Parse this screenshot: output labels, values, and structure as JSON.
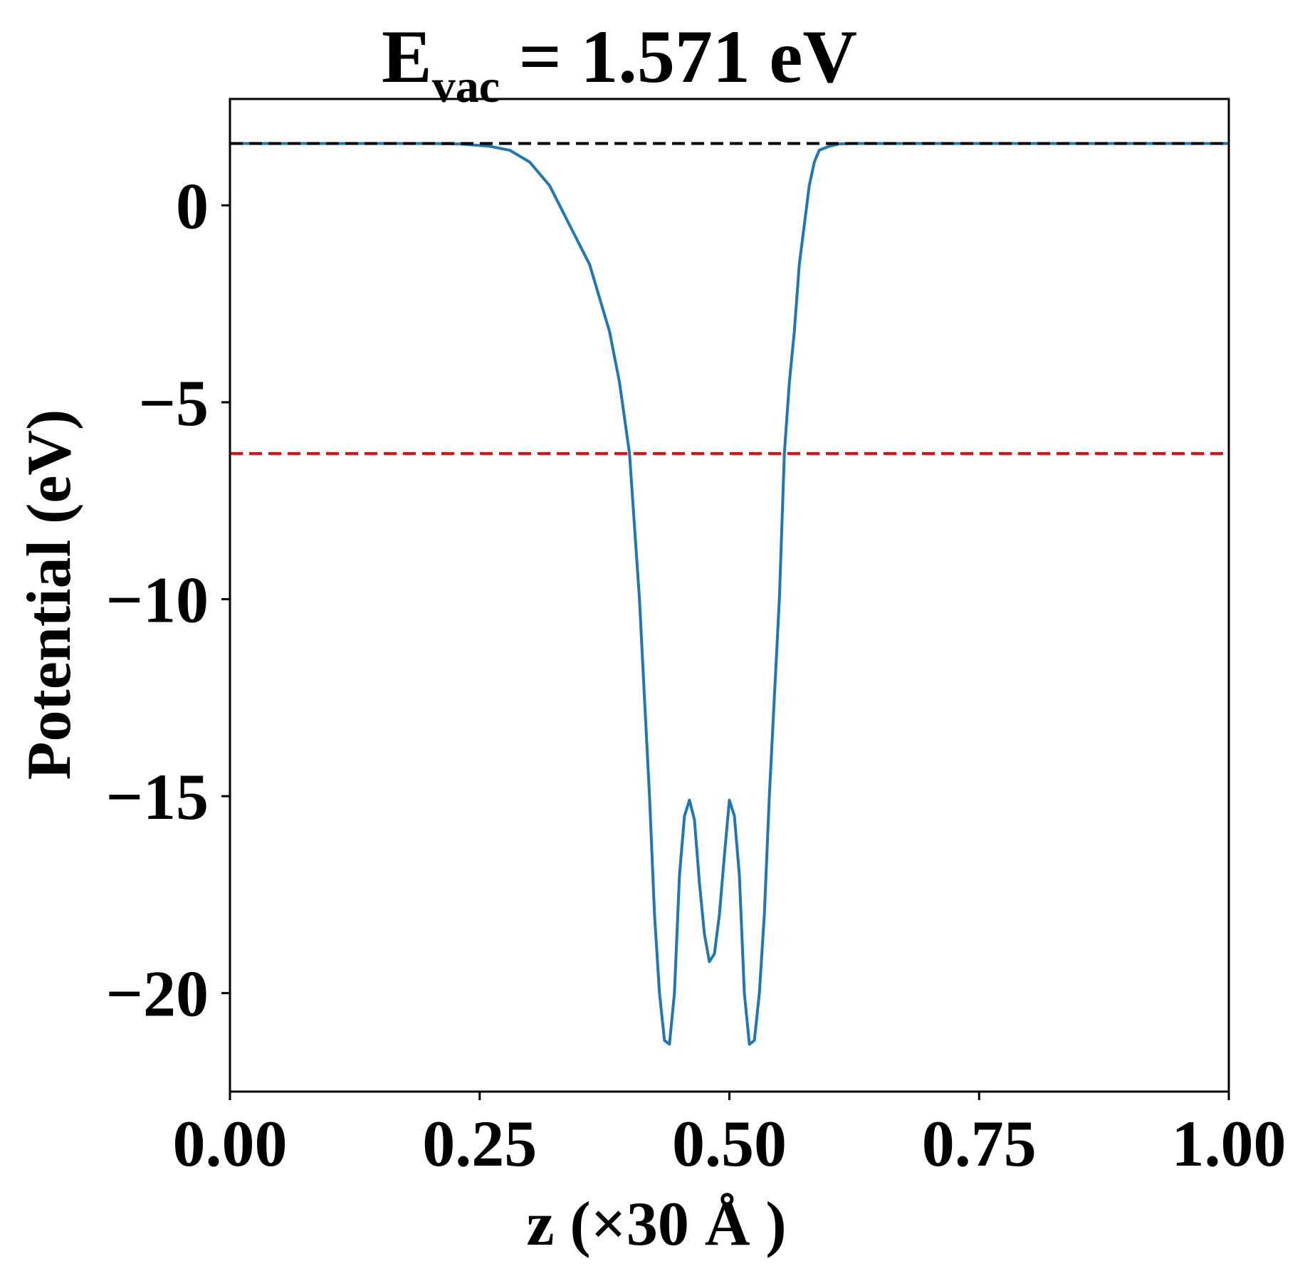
{
  "chart_data": {
    "type": "line",
    "title": {
      "prefix": "E",
      "subscript": "vac",
      "suffix": " = 1.571 eV"
    },
    "xlabel": "z (×30 Å )",
    "ylabel": "Potential (eV)",
    "xlim": [
      0.0,
      1.0
    ],
    "ylim": [
      -22.5,
      2.7
    ],
    "xticks": [
      0.0,
      0.25,
      0.5,
      0.75,
      1.0
    ],
    "xtick_labels": [
      "0.00",
      "0.25",
      "0.50",
      "0.75",
      "1.00"
    ],
    "yticks": [
      0,
      -5,
      -10,
      -15,
      -20
    ],
    "ytick_labels": [
      "0",
      "−5",
      "−10",
      "−15",
      "−20"
    ],
    "grid": false,
    "series": [
      {
        "style": "solid",
        "color": "#1f77b4",
        "x": [
          0.0,
          0.05,
          0.1,
          0.15,
          0.2,
          0.23,
          0.26,
          0.28,
          0.3,
          0.32,
          0.34,
          0.36,
          0.38,
          0.39,
          0.4,
          0.41,
          0.415,
          0.42,
          0.425,
          0.43,
          0.435,
          0.44,
          0.445,
          0.45,
          0.455,
          0.46,
          0.465,
          0.47,
          0.475,
          0.48,
          0.485,
          0.49,
          0.495,
          0.5,
          0.505,
          0.51,
          0.515,
          0.52,
          0.525,
          0.53,
          0.535,
          0.54,
          0.545,
          0.55,
          0.555,
          0.56,
          0.565,
          0.57,
          0.575,
          0.58,
          0.585,
          0.59,
          0.6,
          0.61,
          0.62,
          0.64,
          0.66,
          0.68,
          0.7,
          0.72,
          0.74,
          0.77,
          0.8,
          0.85,
          0.9,
          0.95,
          1.0
        ],
        "y": [
          1.57,
          1.57,
          1.57,
          1.57,
          1.57,
          1.56,
          1.5,
          1.4,
          1.1,
          0.5,
          -0.5,
          -1.5,
          -3.2,
          -4.5,
          -6.3,
          -10.0,
          -12.5,
          -15.0,
          -18.0,
          -20.0,
          -21.2,
          -21.3,
          -20.0,
          -17.0,
          -15.5,
          -15.1,
          -15.6,
          -17.2,
          -18.5,
          -19.2,
          -19.0,
          -18.0,
          -16.5,
          -15.1,
          -15.5,
          -17.0,
          -20.0,
          -21.3,
          -21.2,
          -20.0,
          -18.0,
          -15.0,
          -12.5,
          -10.0,
          -6.3,
          -4.5,
          -3.2,
          -1.5,
          -0.5,
          0.5,
          1.1,
          1.4,
          1.5,
          1.56,
          1.57,
          1.57,
          1.57,
          1.57,
          1.57,
          1.57,
          1.57,
          1.57,
          1.57,
          1.57,
          1.57,
          1.57,
          1.57
        ]
      },
      {
        "style": "dashed",
        "color": "#000000",
        "x": [
          0.0,
          1.0
        ],
        "y": [
          1.571,
          1.571
        ]
      },
      {
        "style": "dashed",
        "color": "#ff0000",
        "x": [
          0.0,
          1.0
        ],
        "y": [
          -6.3,
          -6.3
        ]
      }
    ]
  }
}
